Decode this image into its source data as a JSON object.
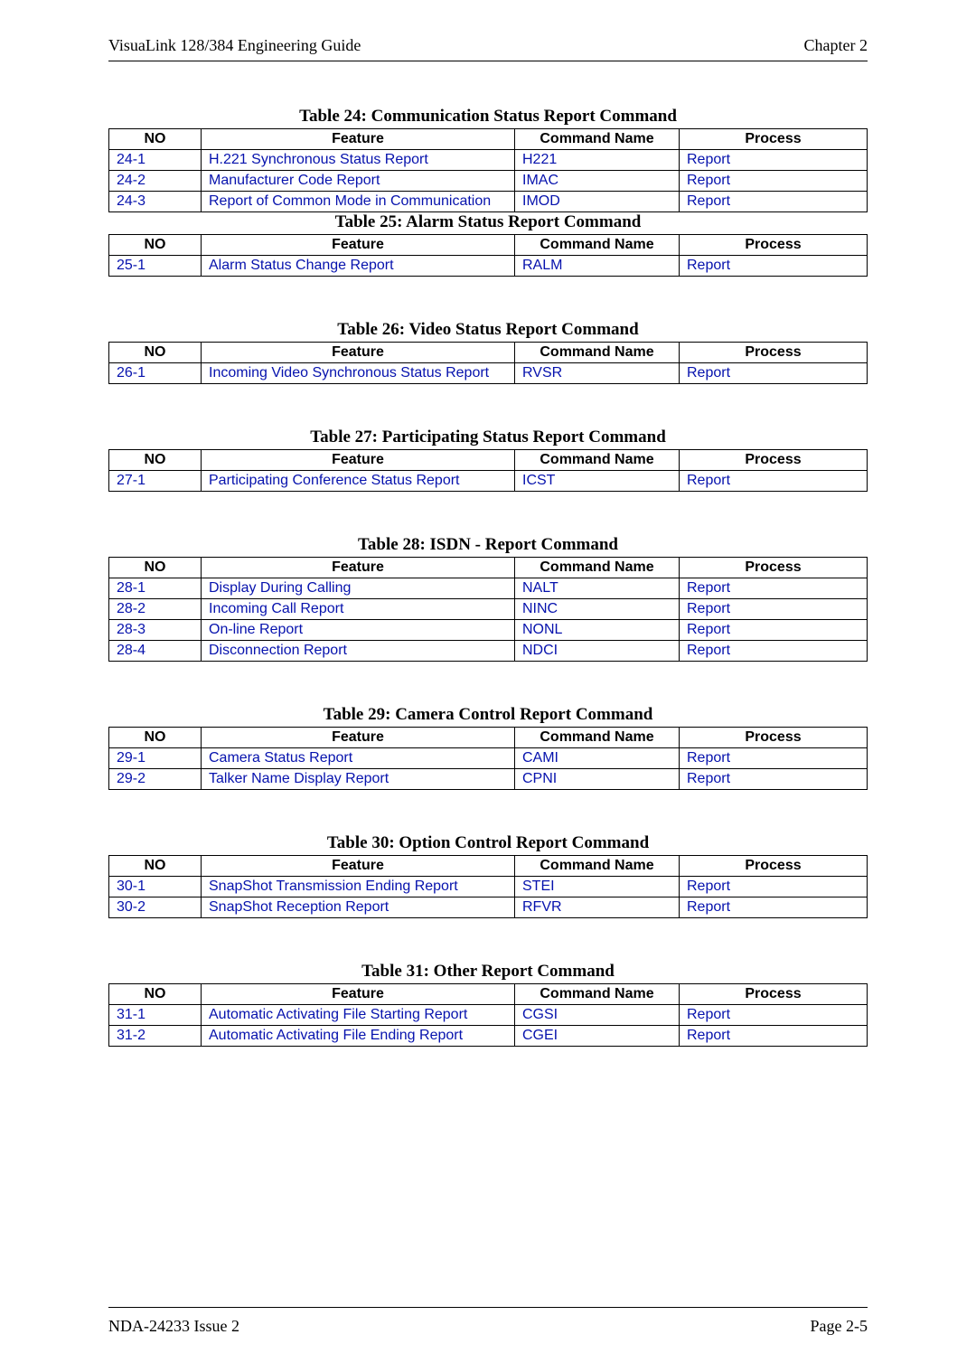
{
  "header": {
    "left": "VisuaLink 128/384 Engineering Guide",
    "right": "Chapter 2"
  },
  "footer": {
    "left": "NDA-24233 Issue 2",
    "right": "Page 2-5"
  },
  "link_color": "#0612ad",
  "column_headers": {
    "no": "NO",
    "feature": "Feature",
    "command": "Command Name",
    "process": "Process"
  },
  "tables": [
    {
      "title": "Table 24:  Communication Status Report Command",
      "rows": [
        {
          "no": "24-1",
          "feature": "H.221 Synchronous Status Report",
          "command": "H221",
          "process": "Report"
        },
        {
          "no": "24-2",
          "feature": "Manufacturer Code Report",
          "command": "IMAC",
          "process": "Report"
        },
        {
          "no": "24-3",
          "feature": "Report of Common Mode in Communication",
          "command": "IMOD",
          "process": "Report"
        }
      ],
      "tight_after": true
    },
    {
      "title": "Table 25:  Alarm Status Report Command",
      "rows": [
        {
          "no": "25-1",
          "feature": "Alarm Status Change Report",
          "command": "RALM",
          "process": "Report"
        }
      ]
    },
    {
      "title": "Table 26:  Video Status Report Command",
      "rows": [
        {
          "no": "26-1",
          "feature": "Incoming Video Synchronous Status Report",
          "command": "RVSR",
          "process": "Report"
        }
      ]
    },
    {
      "title": "Table 27:  Participating Status Report Command",
      "rows": [
        {
          "no": "27-1",
          "feature": "Participating Conference Status Report",
          "command": "ICST",
          "process": "Report"
        }
      ]
    },
    {
      "title": "Table 28:  ISDN - Report Command",
      "rows": [
        {
          "no": "28-1",
          "feature": "Display During Calling",
          "command": "NALT",
          "process": "Report"
        },
        {
          "no": "28-2",
          "feature": "Incoming Call Report",
          "command": "NINC",
          "process": "Report"
        },
        {
          "no": "28-3",
          "feature": "On-line Report",
          "command": "NONL",
          "process": "Report"
        },
        {
          "no": "28-4",
          "feature": "Disconnection Report",
          "command": "NDCI",
          "process": "Report"
        }
      ]
    },
    {
      "title": "Table 29:  Camera Control Report Command",
      "rows": [
        {
          "no": "29-1",
          "feature": "Camera Status Report",
          "command": "CAMI",
          "process": "Report"
        },
        {
          "no": "29-2",
          "feature": "Talker Name Display Report",
          "command": "CPNI",
          "process": "Report"
        }
      ]
    },
    {
      "title": "Table 30:  Option Control Report Command",
      "rows": [
        {
          "no": "30-1",
          "feature": "SnapShot Transmission Ending Report",
          "command": "STEI",
          "process": "Report"
        },
        {
          "no": "30-2",
          "feature": "SnapShot Reception Report",
          "command": "RFVR",
          "process": "Report"
        }
      ]
    },
    {
      "title": "Table 31:  Other Report Command",
      "rows": [
        {
          "no": "31-1",
          "feature": "Automatic Activating File Starting Report",
          "command": "CGSI",
          "process": "Report"
        },
        {
          "no": "31-2",
          "feature": "Automatic Activating File Ending Report",
          "command": "CGEI",
          "process": "Report"
        }
      ]
    }
  ]
}
